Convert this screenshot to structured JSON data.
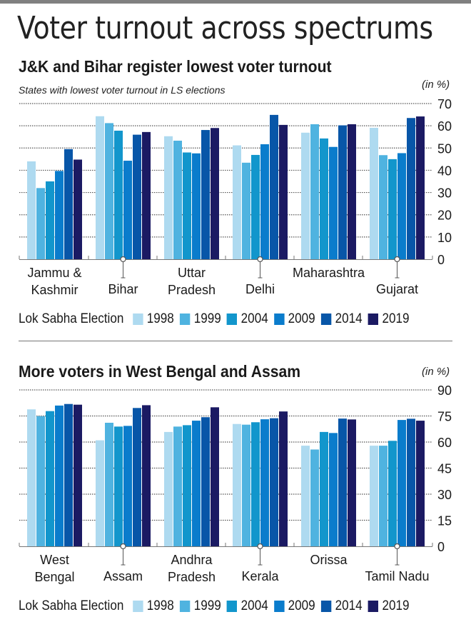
{
  "page": {
    "title": "Voter turnout across spectrums"
  },
  "legend_title": "Lok Sabha Election",
  "series_colors": {
    "1998": "#aedaf0",
    "1999": "#4fb3e0",
    "2004": "#1296cc",
    "2009": "#0a7ccc",
    "2014": "#0856a8",
    "2019": "#1b1a63"
  },
  "chart_data": [
    {
      "type": "bar",
      "title": "J&K and Bihar register lowest voter turnout",
      "subtitle": "States with lowest voter turnout in LS elections",
      "ylabel": "(in %)",
      "xlabel": "",
      "ylim": [
        0,
        70
      ],
      "yticks": [
        0,
        10,
        20,
        30,
        40,
        50,
        60,
        70
      ],
      "grid": true,
      "legend_position": "bottom",
      "legend_title": "Lok Sabha Election",
      "categories": [
        "Jammu & Kashmir",
        "Bihar",
        "Uttar Pradesh",
        "Delhi",
        "Maharashtra",
        "Gujarat"
      ],
      "category_label_lines": [
        [
          "Jammu &",
          "Kashmir"
        ],
        [
          "Bihar"
        ],
        [
          "Uttar",
          "Pradesh"
        ],
        [
          "Delhi"
        ],
        [
          "Maharashtra"
        ],
        [
          "Gujarat"
        ]
      ],
      "series": [
        {
          "name": "1998",
          "values": [
            44,
            64.3,
            55.3,
            51.2,
            56.9,
            59.1
          ]
        },
        {
          "name": "1999",
          "values": [
            32,
            61.2,
            53.3,
            43.4,
            60.7,
            46.8
          ]
        },
        {
          "name": "2004",
          "values": [
            35,
            57.8,
            48,
            46.9,
            54.3,
            45
          ]
        },
        {
          "name": "2009",
          "values": [
            39.7,
            44.3,
            47.6,
            51.7,
            50.5,
            47.7
          ]
        },
        {
          "name": "2014",
          "values": [
            49.5,
            56,
            58.1,
            64.9,
            60.2,
            63.5
          ]
        },
        {
          "name": "2019",
          "values": [
            44.8,
            57.2,
            59,
            60.4,
            60.7,
            64.2
          ]
        }
      ]
    },
    {
      "type": "bar",
      "title": "More voters in West Bengal and Assam",
      "subtitle": "",
      "ylabel": "(in %)",
      "xlabel": "",
      "ylim": [
        0,
        90
      ],
      "yticks": [
        0,
        15,
        30,
        45,
        60,
        75,
        90
      ],
      "grid": true,
      "legend_position": "bottom",
      "legend_title": "Lok Sabha Election",
      "categories": [
        "West Bengal",
        "Assam",
        "Andhra Pradesh",
        "Kerala",
        "Orissa",
        "Tamil Nadu"
      ],
      "category_label_lines": [
        [
          "West",
          "Bengal"
        ],
        [
          "Assam"
        ],
        [
          "Andhra",
          "Pradesh"
        ],
        [
          "Kerala"
        ],
        [
          "Orissa"
        ],
        [
          "Tamil Nadu"
        ]
      ],
      "series": [
        {
          "name": "1998",
          "values": [
            78.8,
            61,
            65.8,
            70.4,
            57.9,
            57.9
          ]
        },
        {
          "name": "1999",
          "values": [
            74.9,
            71.1,
            68.9,
            70,
            55.7,
            57.9
          ]
        },
        {
          "name": "2004",
          "values": [
            77.8,
            68.9,
            69.7,
            71.4,
            65.8,
            60.7
          ]
        },
        {
          "name": "2009",
          "values": [
            81,
            69.3,
            72.3,
            73.1,
            65.2,
            72.7
          ]
        },
        {
          "name": "2014",
          "values": [
            81.9,
            79.6,
            74.3,
            73.7,
            73.5,
            73.4
          ]
        },
        {
          "name": "2019",
          "values": [
            81.5,
            81.2,
            80,
            77.6,
            73,
            72.3
          ]
        }
      ]
    }
  ]
}
